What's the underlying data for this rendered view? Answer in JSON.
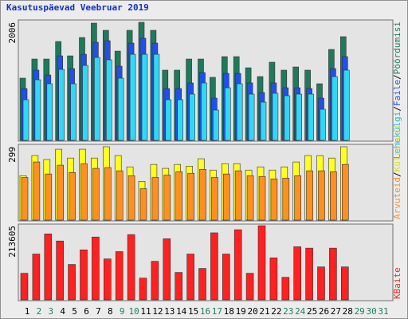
{
  "chart_data": {
    "type": "bar",
    "title": "Kasutuspäevad Veebruar 2019",
    "title_color": "#1030c0",
    "legend_separator": "/",
    "categories": [
      "1",
      "2",
      "3",
      "4",
      "5",
      "6",
      "7",
      "8",
      "9",
      "10",
      "11",
      "12",
      "13",
      "14",
      "15",
      "16",
      "17",
      "18",
      "19",
      "20",
      "21",
      "22",
      "23",
      "24",
      "25",
      "26",
      "27",
      "28",
      "29",
      "30",
      "31"
    ],
    "category_colors": [
      "#000000",
      "#208060",
      "#208060",
      "#000000",
      "#000000",
      "#000000",
      "#000000",
      "#000000",
      "#208060",
      "#208060",
      "#000000",
      "#000000",
      "#000000",
      "#000000",
      "#000000",
      "#208060",
      "#208060",
      "#000000",
      "#000000",
      "#000000",
      "#000000",
      "#000000",
      "#208060",
      "#208060",
      "#000000",
      "#000000",
      "#000000",
      "#000000",
      "#208060",
      "#208060",
      "#208060"
    ],
    "panels": [
      {
        "ylim": [
          0,
          2006
        ],
        "yticks": [
          2006
        ],
        "series": [
          {
            "name": "Pöördumisi",
            "color": "#1f7a5c",
            "label_color": "#1f7a5c",
            "values": [
              1057,
              1382,
              1382,
              1680,
              1436,
              1748,
              1992,
              1870,
              1517,
              1870,
              2006,
              1870,
              1193,
              1193,
              1382,
              1382,
              1071,
              1423,
              1423,
              1233,
              1084,
              1328,
              1193,
              1247,
              1193,
              962,
              1545,
              1762,
              null,
              null,
              null
            ]
          },
          {
            "name": "Faile",
            "color": "#2050e8",
            "label_color": "#2050e8",
            "values": [
              881,
              1193,
              1111,
              1436,
              1220,
              1463,
              1667,
              1694,
              1260,
              1653,
              1735,
              1653,
              881,
              881,
              976,
              1152,
              718,
              1138,
              1138,
              976,
              813,
              976,
              894,
              894,
              881,
              718,
              1220,
              1423,
              null,
              null,
              null
            ]
          },
          {
            "name": "Lehekülgi",
            "color": "#30d8f8",
            "label_color": "#20b8d8",
            "values": [
              691,
              1030,
              962,
              1206,
              962,
              1274,
              1409,
              1369,
              1057,
              1463,
              1463,
              1463,
              691,
              691,
              786,
              976,
              515,
              894,
              962,
              786,
              650,
              800,
              759,
              786,
              786,
              528,
              1084,
              1193,
              null,
              null,
              null
            ]
          }
        ]
      },
      {
        "ylim": [
          0,
          299
        ],
        "yticks": [
          299
        ],
        "series": [
          {
            "name": "Külastusi",
            "color": "#ffff20",
            "label_color": "#e0e000",
            "values": [
              181,
              263,
              247,
              289,
              253,
              289,
              253,
              299,
              263,
              217,
              158,
              227,
              211,
              227,
              220,
              250,
              204,
              230,
              230,
              204,
              217,
              204,
              217,
              237,
              263,
              263,
              253,
              299,
              null,
              null,
              null
            ]
          },
          {
            "name": "Arvuteid",
            "color": "#ff9020",
            "label_color": "#ff9020",
            "values": [
              174,
              237,
              188,
              224,
              194,
              230,
              211,
              214,
              201,
              181,
              128,
              174,
              184,
              197,
              191,
              207,
              174,
              188,
              201,
              181,
              178,
              168,
              171,
              181,
              201,
              201,
              197,
              227,
              null,
              null,
              null
            ]
          }
        ]
      },
      {
        "ylim": [
          0,
          213605
        ],
        "yticks": [
          213605
        ],
        "series": [
          {
            "name": "KBaite",
            "color": "#ff2020",
            "label_color": "#ff2020",
            "values": [
              76600,
              132000,
              190000,
              169500,
              102000,
              144000,
              181000,
              118000,
              139000,
              188000,
              62700,
              111000,
              176000,
              79000,
              132000,
              90500,
              193000,
              132000,
              202000,
              76600,
              213605,
              121000,
              65000,
              153000,
              149000,
              95000,
              149000,
              95000,
              null,
              null,
              null
            ]
          }
        ]
      }
    ]
  }
}
